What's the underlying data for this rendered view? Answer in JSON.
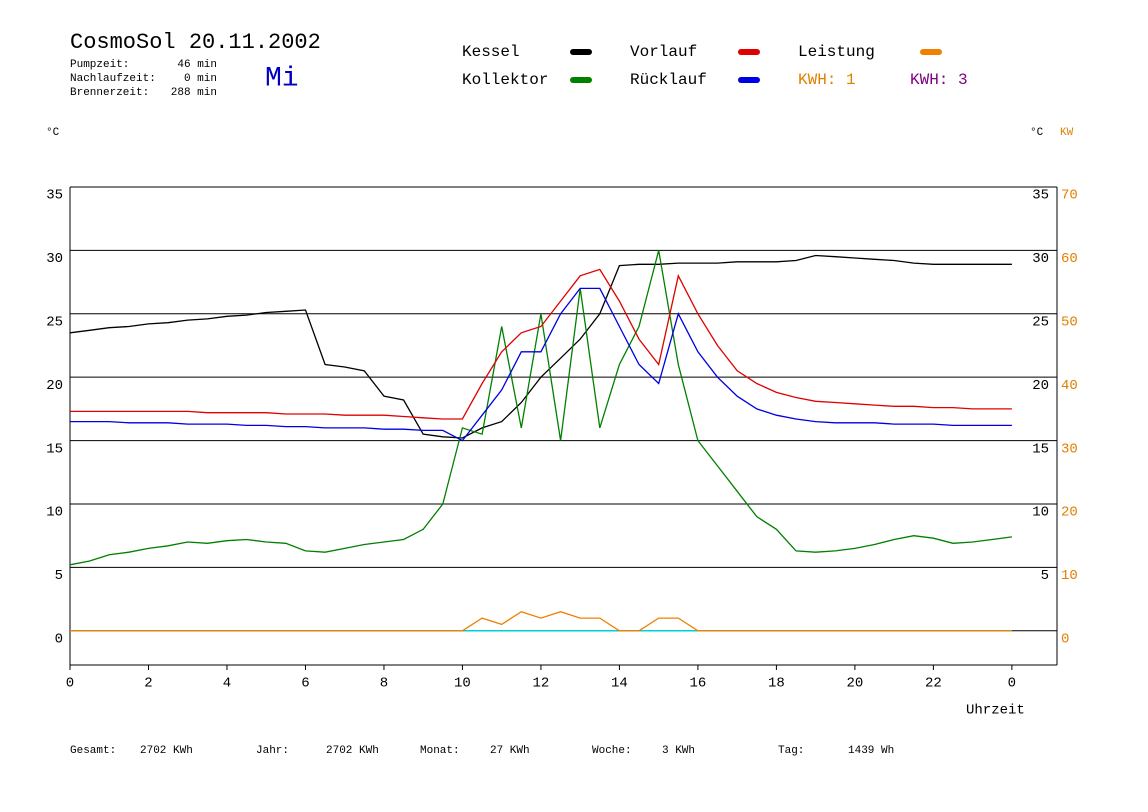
{
  "header": {
    "title": "CosmoSol 20.11.2002",
    "day": "Mi",
    "info": [
      {
        "label": "Pumpzeit:",
        "value": "46 min"
      },
      {
        "label": "Nachlaufzeit:",
        "value": "0 min"
      },
      {
        "label": "Brennerzeit:",
        "value": "288 min"
      }
    ],
    "kwh": [
      {
        "text": "KWH: 1",
        "color": "#e08000"
      },
      {
        "text": "KWH: 3",
        "color": "#800080"
      }
    ]
  },
  "footer": [
    {
      "label": "Gesamt:",
      "value": "2702 KWh"
    },
    {
      "label": "Jahr:",
      "value": "2702 KWh"
    },
    {
      "label": "Monat:",
      "value": "27 KWh"
    },
    {
      "label": "Woche:",
      "value": "3 KWh"
    },
    {
      "label": "Tag:",
      "value": "1439 Wh"
    }
  ],
  "chart_data": {
    "type": "line",
    "y_label": "°C",
    "y2_label_c": "°C",
    "y2_label": "KW",
    "x_label": "Uhrzeit",
    "xlim": [
      0,
      25.15
    ],
    "xticks": [
      0,
      2,
      4,
      6,
      8,
      10,
      12,
      14,
      16,
      18,
      20,
      22,
      {
        "value": 24,
        "label": "0"
      }
    ],
    "ylim": [
      -2.7,
      35
    ],
    "yticks": [
      0,
      5,
      10,
      15,
      20,
      25,
      30,
      35
    ],
    "yticks_inner": [
      5,
      10,
      15,
      20,
      25,
      30,
      35
    ],
    "y2lim": [
      -5.4,
      70
    ],
    "y2ticks": [
      0,
      10,
      20,
      30,
      40,
      50,
      60,
      70
    ],
    "grid": true,
    "x": [
      0,
      0.5,
      1,
      1.5,
      2,
      2.5,
      3,
      3.5,
      4,
      4.5,
      5,
      5.5,
      6,
      6.5,
      7,
      7.5,
      8,
      8.5,
      9,
      9.5,
      10,
      10.5,
      11,
      11.5,
      12,
      12.5,
      13,
      13.5,
      14,
      14.5,
      15,
      15.5,
      16,
      16.5,
      17,
      17.5,
      18,
      18.5,
      19,
      19.5,
      20,
      20.5,
      21,
      21.5,
      22,
      22.5,
      23,
      23.5,
      24
    ],
    "series": [
      {
        "name": "Kessel",
        "color": "#000000",
        "values": [
          23.5,
          23.7,
          23.9,
          24.0,
          24.2,
          24.3,
          24.5,
          24.6,
          24.8,
          24.9,
          25.1,
          25.2,
          25.3,
          21,
          20.8,
          20.5,
          18.5,
          18.2,
          15.5,
          15.3,
          15.2,
          16,
          16.5,
          18,
          20,
          21.5,
          23,
          25,
          28.8,
          28.9,
          28.9,
          29,
          29,
          29,
          29.1,
          29.1,
          29.1,
          29.2,
          29.6,
          29.5,
          29.4,
          29.3,
          29.2,
          29.0,
          28.9,
          28.9,
          28.9,
          28.9,
          28.9
        ]
      },
      {
        "name": "Kollektor",
        "color": "#008000",
        "values": [
          5.2,
          5.5,
          6,
          6.2,
          6.5,
          6.7,
          7,
          6.9,
          7.1,
          7.2,
          7.0,
          6.9,
          6.3,
          6.2,
          6.5,
          6.8,
          7.0,
          7.2,
          8,
          10,
          16,
          15.5,
          24,
          16,
          25,
          15,
          27,
          16,
          21,
          24,
          30,
          21,
          15,
          13,
          11,
          9,
          8,
          6.3,
          6.2,
          6.3,
          6.5,
          6.8,
          7.2,
          7.5,
          7.3,
          6.9,
          7.0,
          7.2,
          7.4
        ]
      },
      {
        "name": "Vorlauf",
        "color": "#e00000",
        "values": [
          17.3,
          17.3,
          17.3,
          17.3,
          17.3,
          17.3,
          17.3,
          17.2,
          17.2,
          17.2,
          17.2,
          17.1,
          17.1,
          17.1,
          17.0,
          17.0,
          17.0,
          16.9,
          16.8,
          16.7,
          16.7,
          19.5,
          22,
          23.5,
          24,
          26,
          28,
          28.5,
          26,
          23,
          21,
          28,
          25,
          22.5,
          20.5,
          19.5,
          18.8,
          18.4,
          18.1,
          18,
          17.9,
          17.8,
          17.7,
          17.7,
          17.6,
          17.6,
          17.5,
          17.5,
          17.5
        ]
      },
      {
        "name": "Rücklauf",
        "color": "#0000e0",
        "values": [
          16.5,
          16.5,
          16.5,
          16.4,
          16.4,
          16.4,
          16.3,
          16.3,
          16.3,
          16.2,
          16.2,
          16.1,
          16.1,
          16.0,
          16.0,
          16.0,
          15.9,
          15.9,
          15.8,
          15.8,
          15.0,
          17,
          19,
          22,
          22,
          25,
          27,
          27,
          24,
          21,
          19.5,
          25,
          22,
          20,
          18.5,
          17.5,
          17,
          16.7,
          16.5,
          16.4,
          16.4,
          16.4,
          16.3,
          16.3,
          16.3,
          16.2,
          16.2,
          16.2,
          16.2
        ]
      },
      {
        "name": "Leistung",
        "color": "#f08000",
        "axis": "y2",
        "values": [
          0,
          0,
          0,
          0,
          0,
          0,
          0,
          0,
          0,
          0,
          0,
          0,
          0,
          0,
          0,
          0,
          0,
          0,
          0,
          0,
          0,
          2,
          1,
          3,
          2,
          3,
          2,
          2,
          0,
          0,
          2,
          2,
          0,
          0,
          0,
          0,
          0,
          0,
          0,
          0,
          0,
          0,
          0,
          0,
          0,
          0,
          0,
          0,
          0
        ]
      }
    ]
  }
}
